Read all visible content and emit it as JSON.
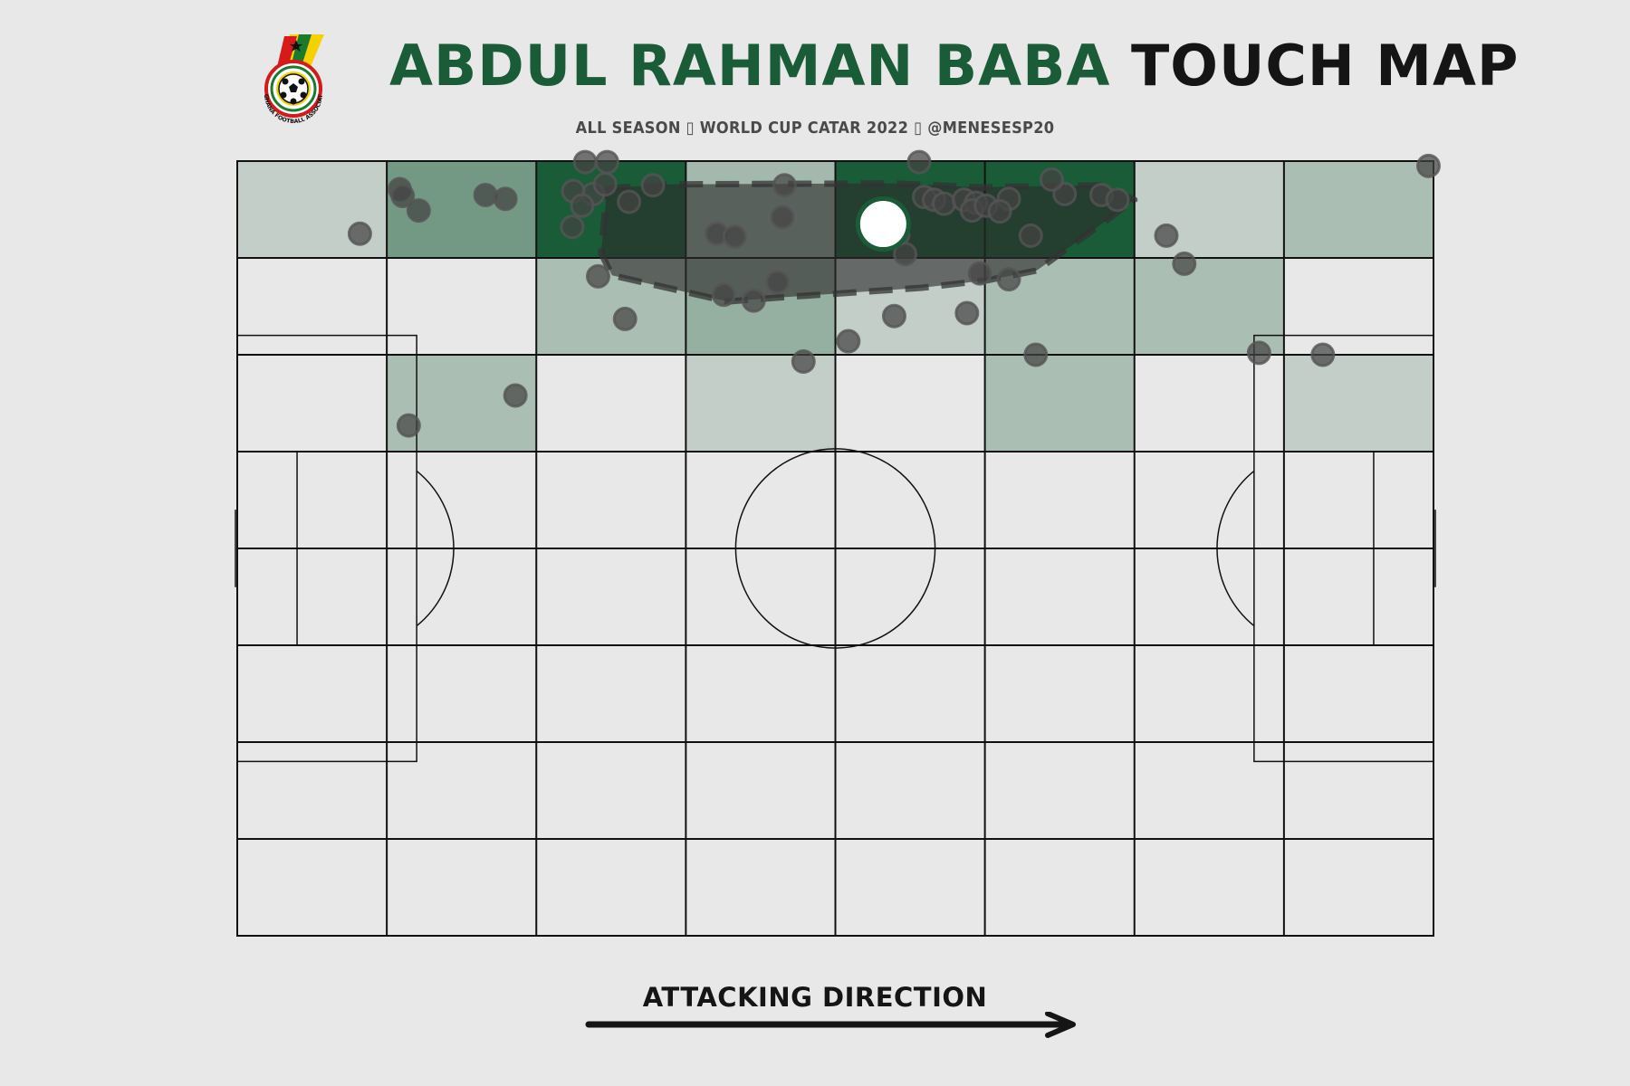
{
  "header": {
    "player_name": "ABDUL RAHMAN BABA",
    "title_suffix": "TOUCH MAP",
    "subtitle": "ALL SEASON ▯ WORLD CUP CATAR 2022 ▯ @MENESESP20",
    "logo_text": "GHANA FOOTBALL ASSOCIATION"
  },
  "footer": {
    "direction_label": "ATTACKING DIRECTION"
  },
  "colors": {
    "background": "#e8e8e8",
    "accent": "#1a5c38",
    "heat": "#1a5c38",
    "touch": "#444444",
    "line": "#111111"
  },
  "chart_data": {
    "type": "scatter",
    "pitch": {
      "length": 120,
      "width": 80,
      "grid_cols": 8,
      "grid_rows": 8
    },
    "heatmap_zones": [
      {
        "col": 0,
        "row": 0,
        "level": 0.15
      },
      {
        "col": 1,
        "row": 0,
        "level": 0.55
      },
      {
        "col": 2,
        "row": 0,
        "level": 1.0
      },
      {
        "col": 3,
        "row": 0,
        "level": 0.3
      },
      {
        "col": 4,
        "row": 0,
        "level": 1.0
      },
      {
        "col": 5,
        "row": 0,
        "level": 1.0
      },
      {
        "col": 6,
        "row": 0,
        "level": 0.15
      },
      {
        "col": 7,
        "row": 0,
        "level": 0.27
      },
      {
        "col": 2,
        "row": 1,
        "level": 0.27
      },
      {
        "col": 3,
        "row": 1,
        "level": 0.38
      },
      {
        "col": 4,
        "row": 1,
        "level": 0.15
      },
      {
        "col": 5,
        "row": 1,
        "level": 0.27
      },
      {
        "col": 6,
        "row": 1,
        "level": 0.27
      },
      {
        "col": 1,
        "row": 2,
        "level": 0.27
      },
      {
        "col": 3,
        "row": 2,
        "level": 0.15
      },
      {
        "col": 5,
        "row": 2,
        "level": 0.27
      },
      {
        "col": 7,
        "row": 2,
        "level": 0.15
      }
    ],
    "touches": [
      [
        12.3,
        7.5
      ],
      [
        16.3,
        2.9
      ],
      [
        16.6,
        3.6
      ],
      [
        18.2,
        5.1
      ],
      [
        24.9,
        3.5
      ],
      [
        26.9,
        3.9
      ],
      [
        34.9,
        0.1
      ],
      [
        37.1,
        0.1
      ],
      [
        35.7,
        3.4
      ],
      [
        36.9,
        2.4
      ],
      [
        33.7,
        3.1
      ],
      [
        34.6,
        4.6
      ],
      [
        33.6,
        6.8
      ],
      [
        39.3,
        4.2
      ],
      [
        41.7,
        2.5
      ],
      [
        48.1,
        7.5
      ],
      [
        49.9,
        7.8
      ],
      [
        54.7,
        5.8
      ],
      [
        54.9,
        2.5
      ],
      [
        68.4,
        0.1
      ],
      [
        68.9,
        3.7
      ],
      [
        69.9,
        4.0
      ],
      [
        70.9,
        4.4
      ],
      [
        72.9,
        4.0
      ],
      [
        74.1,
        4.3
      ],
      [
        73.7,
        5.1
      ],
      [
        75.1,
        4.6
      ],
      [
        77.4,
        3.9
      ],
      [
        76.5,
        5.2
      ],
      [
        83.0,
        3.4
      ],
      [
        81.7,
        1.9
      ],
      [
        86.7,
        3.5
      ],
      [
        88.3,
        4.0
      ],
      [
        79.6,
        7.7
      ],
      [
        66.3,
        7.6
      ],
      [
        67.0,
        9.6
      ],
      [
        54.2,
        12.5
      ],
      [
        51.8,
        14.4
      ],
      [
        48.8,
        13.8
      ],
      [
        36.2,
        11.9
      ],
      [
        38.9,
        16.3
      ],
      [
        56.8,
        20.7
      ],
      [
        65.9,
        16.0
      ],
      [
        74.5,
        11.6
      ],
      [
        77.4,
        12.2
      ],
      [
        73.2,
        15.7
      ],
      [
        61.3,
        18.6
      ],
      [
        80.1,
        20.0
      ],
      [
        93.2,
        7.7
      ],
      [
        95.0,
        10.6
      ],
      [
        102.5,
        19.8
      ],
      [
        108.9,
        20.0
      ],
      [
        27.9,
        24.2
      ],
      [
        17.2,
        27.3
      ],
      [
        119.5,
        0.5
      ]
    ],
    "average_position": [
      64.8,
      6.5
    ],
    "convex_hull": [
      [
        37.1,
        2.8
      ],
      [
        43.5,
        2.4
      ],
      [
        66.0,
        2.3
      ],
      [
        74.1,
        2.7
      ],
      [
        86.7,
        2.5
      ],
      [
        90.0,
        4.0
      ],
      [
        86.3,
        6.8
      ],
      [
        80.2,
        11.3
      ],
      [
        75.3,
        12.3
      ],
      [
        68.5,
        13.1
      ],
      [
        54.2,
        14.1
      ],
      [
        49.2,
        14.5
      ],
      [
        37.6,
        11.8
      ],
      [
        36.5,
        9.5
      ]
    ]
  }
}
